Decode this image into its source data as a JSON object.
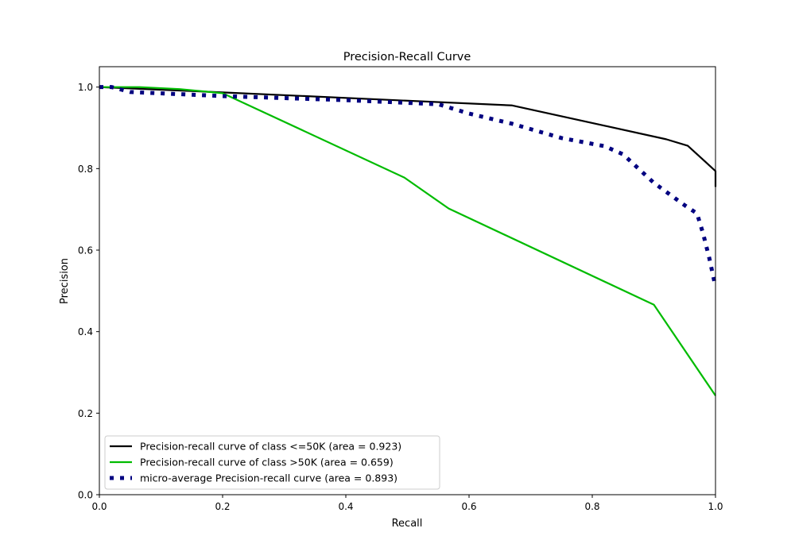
{
  "chart_data": {
    "type": "line",
    "title": "Precision-Recall Curve",
    "xlabel": "Recall",
    "ylabel": "Precision",
    "xlim": [
      0,
      1.0
    ],
    "ylim": [
      0,
      1.05
    ],
    "xticks": [
      0.0,
      0.2,
      0.4,
      0.6,
      0.8,
      1.0
    ],
    "xtick_labels": [
      "0.0",
      "0.2",
      "0.4",
      "0.6",
      "0.8",
      "1.0"
    ],
    "yticks": [
      0.0,
      0.2,
      0.4,
      0.6,
      0.8,
      1.0
    ],
    "ytick_labels": [
      "0.0",
      "0.2",
      "0.4",
      "0.6",
      "0.8",
      "1.0"
    ],
    "grid": false,
    "legend_placement": "lower-left",
    "series": [
      {
        "name": "Precision-recall curve of class  <=50K (area = 0.923)",
        "color": "#000000",
        "style": "solid",
        "x": [
          0.0,
          0.2,
          0.67,
          0.92,
          0.955,
          1.0,
          1.0
        ],
        "y": [
          1.0,
          0.987,
          0.955,
          0.872,
          0.856,
          0.794,
          0.755
        ]
      },
      {
        "name": "Precision-recall curve of class  >50K (area = 0.659)",
        "color": "#00bb00",
        "style": "solid",
        "x": [
          0.0,
          0.065,
          0.13,
          0.2,
          0.495,
          0.567,
          0.9,
          1.0
        ],
        "y": [
          1.0,
          1.0,
          0.995,
          0.985,
          0.778,
          0.702,
          0.466,
          0.243
        ]
      },
      {
        "name": "micro-average Precision-recall curve (area = 0.893)",
        "color": "#000080",
        "style": "dotted",
        "x": [
          0.0,
          0.02,
          0.05,
          0.2,
          0.4,
          0.55,
          0.6,
          0.67,
          0.75,
          0.82,
          0.85,
          0.9,
          0.95,
          0.97,
          0.98,
          0.99,
          1.0
        ],
        "y": [
          1.0,
          1.0,
          0.988,
          0.978,
          0.968,
          0.958,
          0.935,
          0.91,
          0.875,
          0.855,
          0.835,
          0.765,
          0.71,
          0.69,
          0.64,
          0.58,
          0.51
        ]
      }
    ]
  }
}
